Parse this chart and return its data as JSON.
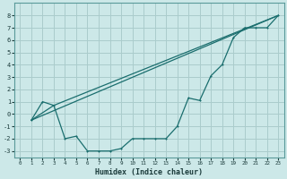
{
  "xlabel": "Humidex (Indice chaleur)",
  "ylabel": "",
  "bg_color": "#cce8e8",
  "grid_color": "#aacccc",
  "line_color": "#1a6e6e",
  "xlim": [
    -0.5,
    23.5
  ],
  "ylim": [
    -3.5,
    9.0
  ],
  "xticks": [
    0,
    1,
    2,
    3,
    4,
    5,
    6,
    7,
    8,
    9,
    10,
    11,
    12,
    13,
    14,
    15,
    16,
    17,
    18,
    19,
    20,
    21,
    22,
    23
  ],
  "yticks": [
    -3,
    -2,
    -1,
    0,
    1,
    2,
    3,
    4,
    5,
    6,
    7,
    8
  ],
  "line1_x": [
    1,
    2,
    3,
    4,
    5,
    6,
    7,
    8,
    9,
    10,
    11,
    12,
    13,
    14,
    15,
    16,
    17,
    18,
    19,
    20,
    21,
    22,
    23
  ],
  "line1_y": [
    -0.5,
    1.0,
    0.7,
    -2.0,
    -1.8,
    -3.0,
    -3.0,
    -3.0,
    -2.8,
    -2.0,
    -2.0,
    -2.0,
    -2.0,
    -1.0,
    1.3,
    1.1,
    3.1,
    4.0,
    6.2,
    7.0,
    7.0,
    7.0,
    8.0
  ],
  "line2_x": [
    1,
    23
  ],
  "line2_y": [
    -0.5,
    8.0
  ],
  "line3_x": [
    1,
    3,
    23
  ],
  "line3_y": [
    -0.5,
    0.7,
    8.0
  ]
}
